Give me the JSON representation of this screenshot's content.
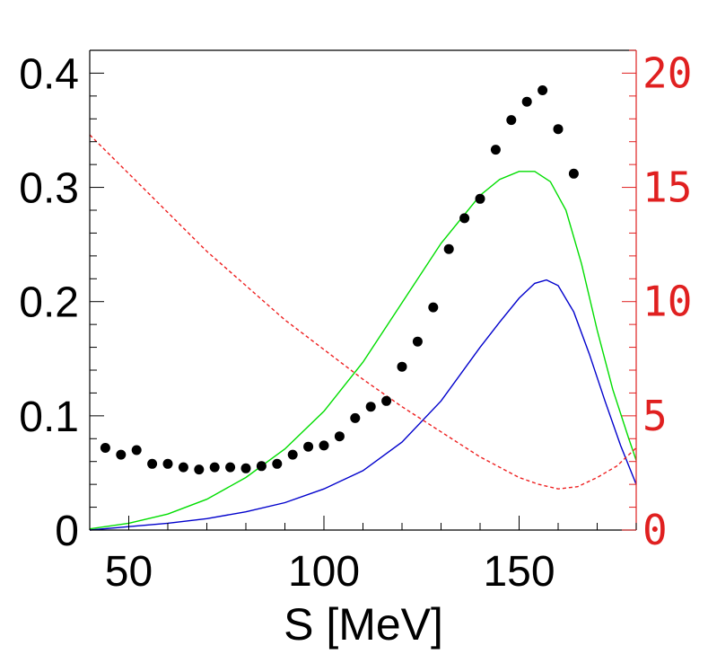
{
  "chart_data": {
    "type": "scatter",
    "title": "",
    "xlabel": "S [MeV]",
    "ylabel": "",
    "xlim": [
      40,
      180
    ],
    "ylim": [
      0,
      0.42
    ],
    "y2lim": [
      0,
      21
    ],
    "x_ticks": [
      50,
      100,
      150
    ],
    "y_ticks": [
      0,
      0.1,
      0.2,
      0.3,
      0.4
    ],
    "y_tick_labels": [
      "0",
      "0.1",
      "0.2",
      "0.3",
      "0.4"
    ],
    "y2_ticks": [
      0,
      5,
      10,
      15,
      20
    ],
    "y2_tick_labels": [
      "0",
      "5",
      "10",
      "15",
      "20"
    ],
    "colors": {
      "axis": "#000000",
      "points": "#000000",
      "green_curve": "#00dd00",
      "blue_curve": "#0000cc",
      "red_axis": "#e02020",
      "red_dashed": "#ee2020"
    },
    "series": [
      {
        "name": "data-points",
        "kind": "points",
        "axis": "left",
        "x": [
          44,
          48,
          52,
          56,
          60,
          64,
          68,
          72,
          76,
          80,
          84,
          88,
          92,
          96,
          100,
          104,
          108,
          112,
          116,
          120,
          124,
          128,
          132,
          136,
          140,
          144,
          148,
          152,
          156,
          160,
          164
        ],
        "y": [
          0.072,
          0.066,
          0.07,
          0.058,
          0.058,
          0.055,
          0.053,
          0.055,
          0.055,
          0.054,
          0.056,
          0.058,
          0.066,
          0.073,
          0.074,
          0.082,
          0.098,
          0.108,
          0.113,
          0.143,
          0.165,
          0.195,
          0.246,
          0.273,
          0.29,
          0.333,
          0.359,
          0.375,
          0.385,
          0.351,
          0.312
        ]
      },
      {
        "name": "green-curve",
        "kind": "line",
        "axis": "left",
        "x": [
          40,
          50,
          60,
          70,
          80,
          90,
          100,
          110,
          120,
          130,
          140,
          145,
          150,
          154,
          158,
          162,
          166,
          170,
          174,
          178,
          180
        ],
        "y": [
          0.001,
          0.006,
          0.014,
          0.027,
          0.046,
          0.071,
          0.104,
          0.147,
          0.199,
          0.251,
          0.293,
          0.307,
          0.314,
          0.314,
          0.305,
          0.28,
          0.233,
          0.175,
          0.123,
          0.081,
          0.061
        ]
      },
      {
        "name": "blue-curve",
        "kind": "line",
        "axis": "left",
        "x": [
          40,
          50,
          60,
          70,
          80,
          90,
          100,
          110,
          120,
          130,
          140,
          145,
          150,
          154,
          157,
          160,
          164,
          168,
          172,
          176,
          180
        ],
        "y": [
          0.0,
          0.003,
          0.006,
          0.01,
          0.016,
          0.024,
          0.036,
          0.052,
          0.077,
          0.113,
          0.16,
          0.182,
          0.203,
          0.216,
          0.219,
          0.214,
          0.191,
          0.154,
          0.113,
          0.074,
          0.04
        ]
      },
      {
        "name": "red-dashed-curve",
        "kind": "line",
        "axis": "right",
        "dashed": true,
        "x": [
          40,
          50,
          60,
          70,
          80,
          90,
          100,
          110,
          120,
          130,
          140,
          150,
          155,
          160,
          165,
          170,
          175,
          180
        ],
        "y": [
          17.3,
          15.6,
          13.9,
          12.2,
          10.7,
          9.2,
          7.9,
          6.6,
          5.4,
          4.3,
          3.2,
          2.3,
          2.0,
          1.8,
          1.9,
          2.3,
          2.8,
          3.6
        ]
      }
    ]
  }
}
